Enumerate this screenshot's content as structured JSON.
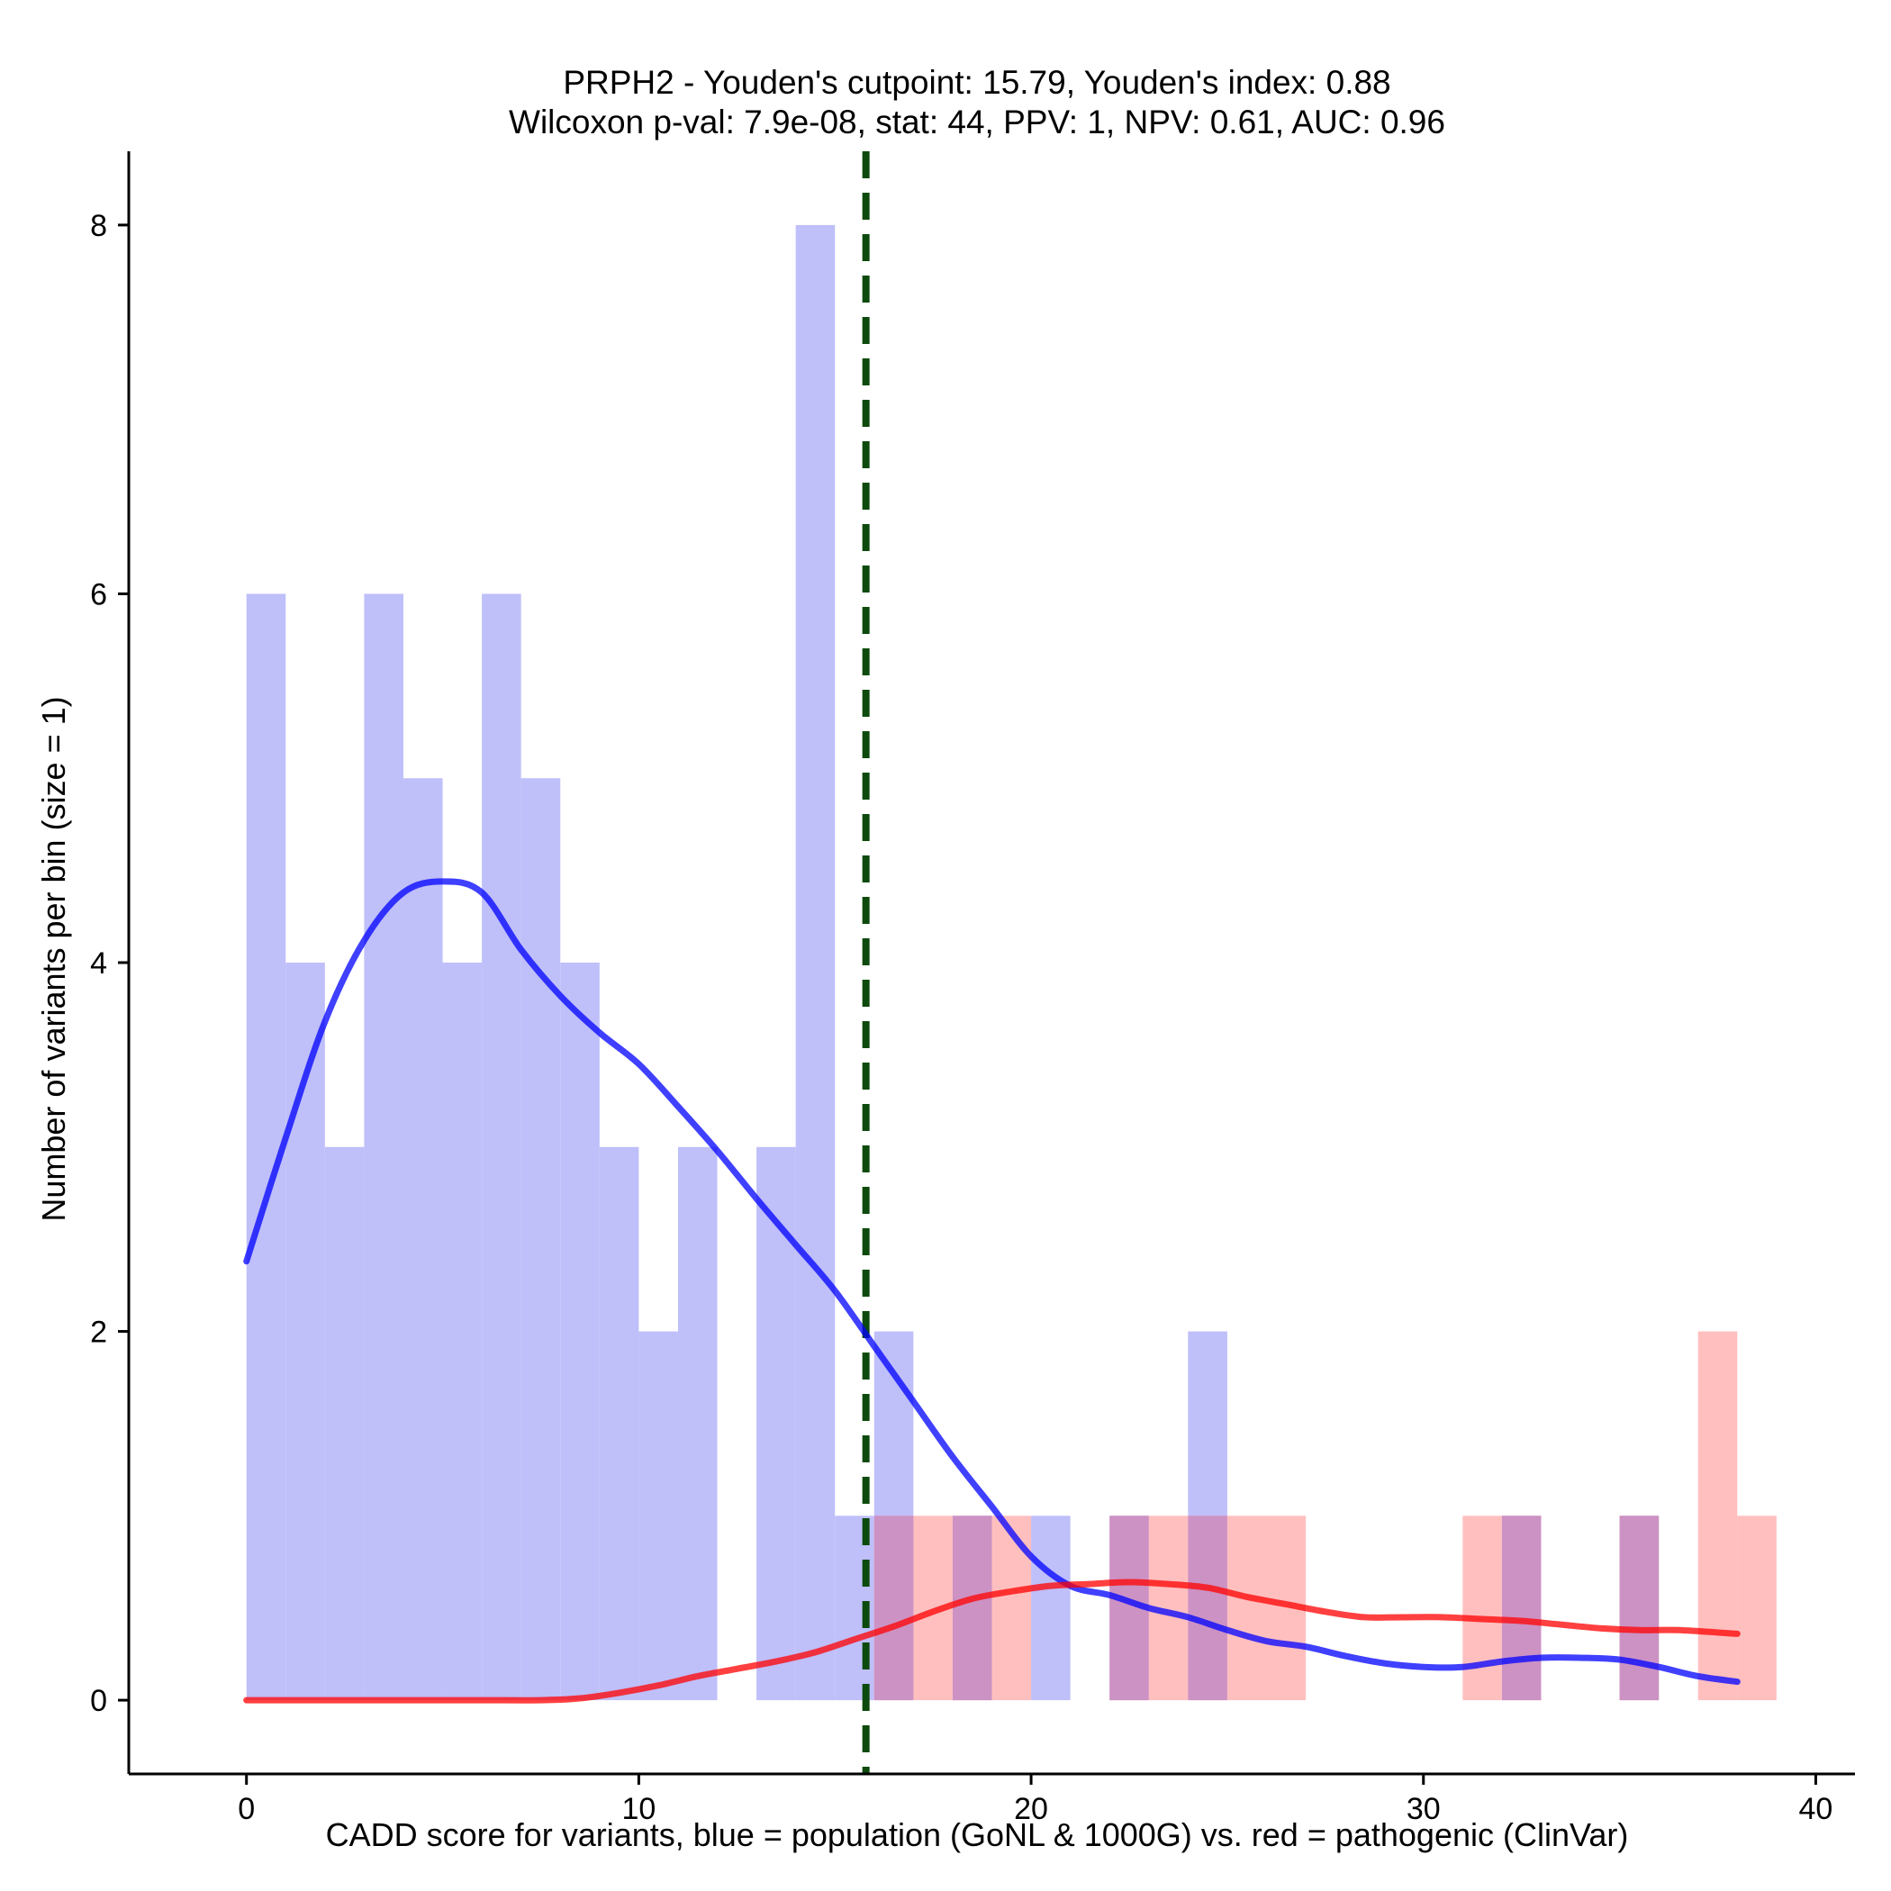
{
  "chart_data": {
    "type": "bar",
    "title_line1": "PRPH2 - Youden's cutpoint: 15.79, Youden's index: 0.88",
    "title_line2": "Wilcoxon p-val: 7.9e-08, stat: 44, PPV: 1, NPV: 0.61, AUC: 0.96",
    "xlabel": "CADD score for variants, blue = population (GoNL & 1000G) vs. red = pathogenic (ClinVar)",
    "ylabel": "Number of variants per bin (size = 1)",
    "xlim": [
      -3,
      41
    ],
    "ylim": [
      -0.4,
      8.4
    ],
    "x_ticks": [
      0,
      10,
      20,
      30,
      40
    ],
    "y_ticks": [
      0,
      2,
      4,
      6,
      8
    ],
    "bin_size": 1,
    "cutpoint": 15.79,
    "colors": {
      "population": "#0000ff",
      "pathogenic": "#ff0000",
      "population_fill": "#bfbffa",
      "pathogenic_fill": "#ffbfbf",
      "overlap_fill": "#cc92c4",
      "cutpoint_line": "#0d4a0d"
    },
    "series": [
      {
        "name": "population",
        "bins": [
          {
            "start": 0,
            "count": 6
          },
          {
            "start": 1,
            "count": 4
          },
          {
            "start": 2,
            "count": 3
          },
          {
            "start": 3,
            "count": 6
          },
          {
            "start": 4,
            "count": 5
          },
          {
            "start": 5,
            "count": 4
          },
          {
            "start": 6,
            "count": 6
          },
          {
            "start": 7,
            "count": 5
          },
          {
            "start": 8,
            "count": 4
          },
          {
            "start": 9,
            "count": 3
          },
          {
            "start": 10,
            "count": 2
          },
          {
            "start": 11,
            "count": 3
          },
          {
            "start": 13,
            "count": 3
          },
          {
            "start": 14,
            "count": 8
          },
          {
            "start": 15,
            "count": 1
          },
          {
            "start": 16,
            "count": 2
          },
          {
            "start": 18,
            "count": 1
          },
          {
            "start": 20,
            "count": 1
          },
          {
            "start": 22,
            "count": 1
          },
          {
            "start": 24,
            "count": 2
          },
          {
            "start": 32,
            "count": 1
          },
          {
            "start": 35,
            "count": 1
          }
        ],
        "density": {
          "x": [
            0,
            1,
            2,
            3,
            4,
            5,
            6,
            7,
            8,
            9,
            10,
            11,
            12,
            13,
            14,
            15,
            16,
            17,
            18,
            19,
            20,
            21,
            22,
            23,
            24,
            25,
            26,
            27,
            28,
            29,
            30,
            31,
            32,
            33,
            34,
            35,
            36,
            37,
            38
          ],
          "y": [
            2.38,
            3.05,
            3.68,
            4.12,
            4.38,
            4.44,
            4.38,
            4.07,
            3.82,
            3.62,
            3.45,
            3.22,
            2.98,
            2.72,
            2.47,
            2.22,
            1.92,
            1.62,
            1.32,
            1.05,
            0.78,
            0.62,
            0.57,
            0.5,
            0.45,
            0.38,
            0.32,
            0.29,
            0.24,
            0.2,
            0.18,
            0.18,
            0.21,
            0.23,
            0.23,
            0.22,
            0.18,
            0.13,
            0.1
          ]
        }
      },
      {
        "name": "pathogenic",
        "bins": [
          {
            "start": 16,
            "count": 1
          },
          {
            "start": 17,
            "count": 1
          },
          {
            "start": 18,
            "count": 1
          },
          {
            "start": 19,
            "count": 1
          },
          {
            "start": 22,
            "count": 1
          },
          {
            "start": 23,
            "count": 1
          },
          {
            "start": 24,
            "count": 1
          },
          {
            "start": 25,
            "count": 1
          },
          {
            "start": 26,
            "count": 1
          },
          {
            "start": 31,
            "count": 1
          },
          {
            "start": 32,
            "count": 1
          },
          {
            "start": 35,
            "count": 1
          },
          {
            "start": 37,
            "count": 2
          },
          {
            "start": 38,
            "count": 1
          }
        ],
        "density": {
          "x": [
            0,
            2,
            4,
            6,
            7.5,
            8.5,
            9.5,
            10.5,
            11.5,
            12.5,
            13.5,
            14.5,
            15.5,
            16.5,
            17.5,
            18.5,
            19.5,
            20.5,
            21.5,
            22.5,
            23.5,
            24.5,
            25.5,
            26.5,
            27.5,
            28.5,
            29.5,
            30.5,
            31.5,
            32.5,
            33.5,
            34.5,
            35.5,
            36.5,
            38
          ],
          "y": [
            0,
            0,
            0,
            0,
            0,
            0.01,
            0.04,
            0.08,
            0.13,
            0.17,
            0.21,
            0.26,
            0.33,
            0.4,
            0.48,
            0.55,
            0.59,
            0.62,
            0.63,
            0.64,
            0.63,
            0.61,
            0.56,
            0.52,
            0.48,
            0.45,
            0.45,
            0.45,
            0.44,
            0.43,
            0.41,
            0.39,
            0.38,
            0.38,
            0.36
          ]
        }
      }
    ]
  }
}
